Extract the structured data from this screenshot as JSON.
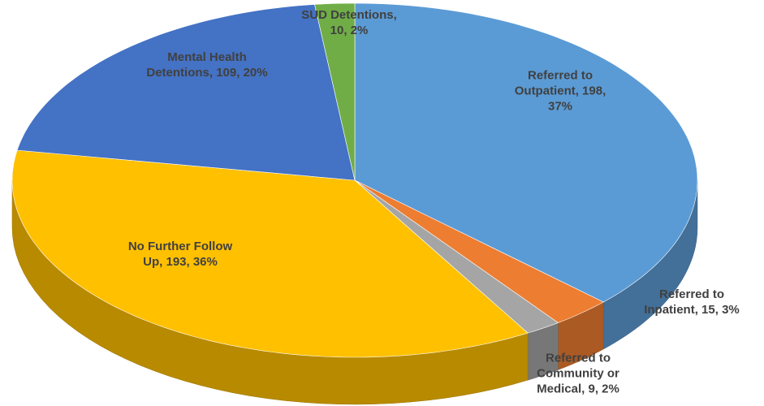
{
  "chart_data": {
    "type": "pie3d",
    "value_labels": [
      "Referred to Outpatient, 198, 37%",
      "Referred to Inpatient, 15, 3%",
      "Referred to Community or Medical, 9, 2%",
      "No Further Follow Up, 193, 36%",
      "Mental Health Detentions, 109, 20%",
      "SUD Detentions, 10, 2%"
    ],
    "values": [
      198,
      15,
      9,
      193,
      109,
      10
    ],
    "colors": [
      "#5b9bd5",
      "#ed7d31",
      "#a5a5a5",
      "#ffc000",
      "#4472c4",
      "#70ad47"
    ]
  }
}
